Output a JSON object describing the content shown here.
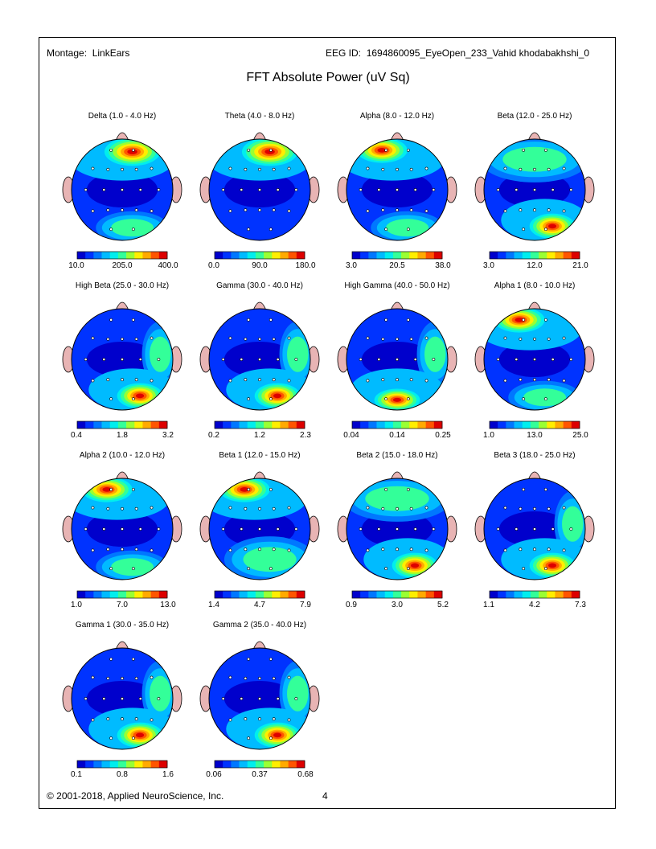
{
  "header": {
    "montage_label": "Montage:",
    "montage_value": "LinkEars",
    "eeg_id_label": "EEG ID:",
    "eeg_id_value": "1694860095_EyeOpen_233_Vahid khodabakhshi_0"
  },
  "title": "FFT Absolute Power  (uV Sq)",
  "footer": {
    "copyright": "© 2001-2018, Applied NeuroScience, Inc.",
    "page_number": "4"
  },
  "colors": {
    "scale": [
      "#0000cc",
      "#0033ff",
      "#0077ff",
      "#00bbff",
      "#00eeee",
      "#33ff99",
      "#99ff33",
      "#ffee00",
      "#ffaa00",
      "#ff5500",
      "#dd0000"
    ],
    "ear_nose": "#e8b4b4"
  },
  "maps": [
    {
      "title": "Delta (1.0 - 4.0 Hz)",
      "ticks": [
        "10.0",
        "205.0",
        "400.0"
      ],
      "hot": "frontal",
      "mid": "posterior"
    },
    {
      "title": "Theta (4.0 - 8.0 Hz)",
      "ticks": [
        "0.0",
        "90.0",
        "180.0"
      ],
      "hot": "frontal",
      "mid": "none"
    },
    {
      "title": "Alpha (8.0 - 12.0 Hz)",
      "ticks": [
        "3.0",
        "20.5",
        "38.0"
      ],
      "hot": "frontal-left",
      "mid": "posterior"
    },
    {
      "title": "Beta (12.0 - 25.0 Hz)",
      "ticks": [
        "3.0",
        "12.0",
        "21.0"
      ],
      "hot": "posterior-right",
      "mid": "frontal"
    },
    {
      "title": "High Beta (25.0 - 30.0 Hz)",
      "ticks": [
        "0.4",
        "1.8",
        "3.2"
      ],
      "hot": "posterior-right",
      "mid": "right"
    },
    {
      "title": "Gamma (30.0 - 40.0 Hz)",
      "ticks": [
        "0.2",
        "1.2",
        "2.3"
      ],
      "hot": "posterior-right",
      "mid": "right"
    },
    {
      "title": "High Gamma (40.0 - 50.0 Hz)",
      "ticks": [
        "0.04",
        "0.14",
        "0.25"
      ],
      "hot": "posterior-center",
      "mid": "right"
    },
    {
      "title": "Alpha 1 (8.0 - 10.0 Hz)",
      "ticks": [
        "1.0",
        "13.0",
        "25.0"
      ],
      "hot": "frontal-left",
      "mid": "posterior"
    },
    {
      "title": "Alpha 2 (10.0 - 12.0 Hz)",
      "ticks": [
        "1.0",
        "7.0",
        "13.0"
      ],
      "hot": "frontal-left",
      "mid": "posterior"
    },
    {
      "title": "Beta 1 (12.0 - 15.0 Hz)",
      "ticks": [
        "1.4",
        "4.7",
        "7.9"
      ],
      "hot": "frontal-left",
      "mid": "posterior-right"
    },
    {
      "title": "Beta 2 (15.0 - 18.0 Hz)",
      "ticks": [
        "0.9",
        "3.0",
        "5.2"
      ],
      "hot": "posterior-right",
      "mid": "frontal"
    },
    {
      "title": "Beta 3 (18.0 - 25.0 Hz)",
      "ticks": [
        "1.1",
        "4.2",
        "7.3"
      ],
      "hot": "posterior-right",
      "mid": "right"
    },
    {
      "title": "Gamma 1 (30.0 - 35.0 Hz)",
      "ticks": [
        "0.1",
        "0.8",
        "1.6"
      ],
      "hot": "posterior-right",
      "mid": "right"
    },
    {
      "title": "Gamma 2 (35.0 - 40.0 Hz)",
      "ticks": [
        "0.06",
        "0.37",
        "0.68"
      ],
      "hot": "posterior-right",
      "mid": "right"
    }
  ]
}
